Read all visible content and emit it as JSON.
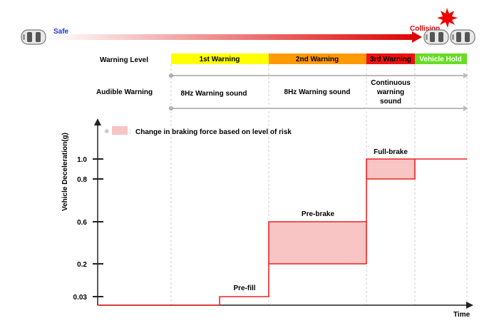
{
  "header": {
    "safe_label": "Safe",
    "collision_label": "Collision",
    "car_icon": "car-icon",
    "burst_icon": "collision-burst-icon",
    "gradient_start": "#ffffff",
    "gradient_end": "#dd0000"
  },
  "rows": {
    "warning_level_label": "Warning Level",
    "audible_warning_label": "Audible Warning"
  },
  "warning_levels": [
    {
      "label": "1st Warning",
      "color": "#ffff00"
    },
    {
      "label": "2nd Warning",
      "color": "#ff9900"
    },
    {
      "label": "3rd Warning",
      "color": "#ee1111"
    },
    {
      "label": "Vehicle Hold",
      "color": "#66dd22"
    }
  ],
  "audible_warnings": [
    {
      "lines": [
        "8Hz Warning sound"
      ]
    },
    {
      "lines": [
        "8Hz Warning sound"
      ]
    },
    {
      "lines": [
        "Continuous",
        "warning",
        "sound"
      ]
    }
  ],
  "legend": {
    "symbol": "※",
    "separator": ":",
    "text": "Change in braking force based on level of risk",
    "swatch_color": "#f8c4c4"
  },
  "chart_data": {
    "type": "line",
    "ylabel": "Vehicle Deceleration(g)",
    "xlabel": "Time",
    "yticks": [
      0.03,
      0.2,
      0.6,
      0.8,
      1.0
    ],
    "ytick_labels": [
      "0.03",
      "0.2",
      "0.6",
      "0.8",
      "1.0"
    ],
    "stages": [
      {
        "label": "Pre-fill",
        "y_low": 0.03,
        "y_high": 0.03,
        "shaded": false
      },
      {
        "label": "Pre-brake",
        "y_low": 0.2,
        "y_high": 0.6,
        "shaded": true
      },
      {
        "label": "Full-brake",
        "y_low": 0.8,
        "y_high": 1.0,
        "shaded": true
      }
    ],
    "line_color": "#ee2222",
    "shade_color": "#f8c4c4"
  }
}
